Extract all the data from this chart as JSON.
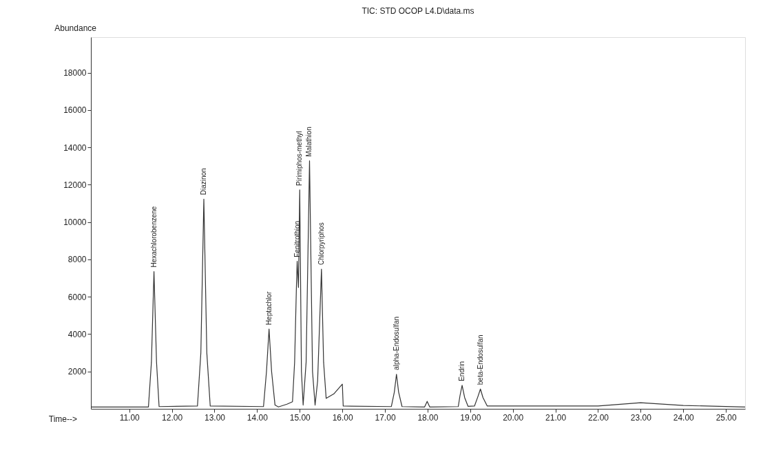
{
  "chart_data": {
    "type": "line",
    "title": "TIC: STD OCOP L4.D\\data.ms",
    "xlabel": "Time-->",
    "ylabel": "Abundance",
    "xlim": [
      10.1,
      25.45
    ],
    "ylim": [
      0,
      19900
    ],
    "xticks": [
      {
        "value": 11,
        "label": "11.00"
      },
      {
        "value": 12,
        "label": "12.00"
      },
      {
        "value": 13,
        "label": "13.00"
      },
      {
        "value": 14,
        "label": "14.00"
      },
      {
        "value": 15,
        "label": "15.00"
      },
      {
        "value": 16,
        "label": "16.00"
      },
      {
        "value": 17,
        "label": "17.00"
      },
      {
        "value": 18,
        "label": "18.00"
      },
      {
        "value": 19,
        "label": "19.00"
      },
      {
        "value": 20,
        "label": "20.00"
      },
      {
        "value": 21,
        "label": "21.00"
      },
      {
        "value": 22,
        "label": "22.00"
      },
      {
        "value": 23,
        "label": "23.00"
      },
      {
        "value": 24,
        "label": "24.00"
      },
      {
        "value": 25,
        "label": "25.00"
      }
    ],
    "yticks": [
      2000,
      4000,
      6000,
      8000,
      10000,
      12000,
      14000,
      16000,
      18000
    ],
    "grid": false,
    "marker": "none",
    "line_style": "solid",
    "series": [
      {
        "color": "#333333",
        "x": [
          10.1,
          11.45,
          11.52,
          11.58,
          11.64,
          11.7,
          12.6,
          12.68,
          12.75,
          12.82,
          12.9,
          14.15,
          14.22,
          14.28,
          14.34,
          14.42,
          14.5,
          14.7,
          14.83,
          14.88,
          14.92,
          14.94,
          14.97,
          15.0,
          15.04,
          15.08,
          15.15,
          15.23,
          15.3,
          15.36,
          15.42,
          15.51,
          15.56,
          15.62,
          15.8,
          16.0,
          16.02,
          17.15,
          17.22,
          17.27,
          17.32,
          17.4,
          17.93,
          17.99,
          18.05,
          18.72,
          18.76,
          18.81,
          18.87,
          18.95,
          19.1,
          19.18,
          19.24,
          19.3,
          19.4,
          22.0,
          23.0,
          24.0,
          25.45
        ],
        "values": [
          100,
          100,
          2500,
          7350,
          2500,
          120,
          150,
          3000,
          11230,
          3000,
          150,
          120,
          2000,
          4270,
          2000,
          200,
          100,
          250,
          380,
          2500,
          6300,
          7900,
          6500,
          11720,
          2000,
          200,
          2500,
          13280,
          2000,
          200,
          1500,
          7480,
          2500,
          560,
          800,
          1320,
          150,
          120,
          900,
          1850,
          900,
          120,
          100,
          400,
          100,
          120,
          700,
          1260,
          600,
          130,
          150,
          650,
          1060,
          600,
          150,
          150,
          330,
          180,
          100
        ]
      }
    ],
    "annotations": [
      {
        "text": "Hexachlorobenzene",
        "x": 11.58,
        "y": 7350
      },
      {
        "text": "Diazinon",
        "x": 12.75,
        "y": 11230
      },
      {
        "text": "Heptachlor",
        "x": 14.28,
        "y": 4270
      },
      {
        "text": "Fenitrothion",
        "x": 14.94,
        "y": 7900
      },
      {
        "text": "Pirimiphos-methyl",
        "x": 15.0,
        "y": 11720
      },
      {
        "text": "Malathion",
        "x": 15.23,
        "y": 13280
      },
      {
        "text": "Chlorpyriphos",
        "x": 15.51,
        "y": 7480
      },
      {
        "text": "alpha-Endosulfan",
        "x": 17.27,
        "y": 1850
      },
      {
        "text": "Endrin",
        "x": 18.81,
        "y": 1260
      },
      {
        "text": "beta-Endosulfan",
        "x": 19.24,
        "y": 1060
      }
    ]
  }
}
